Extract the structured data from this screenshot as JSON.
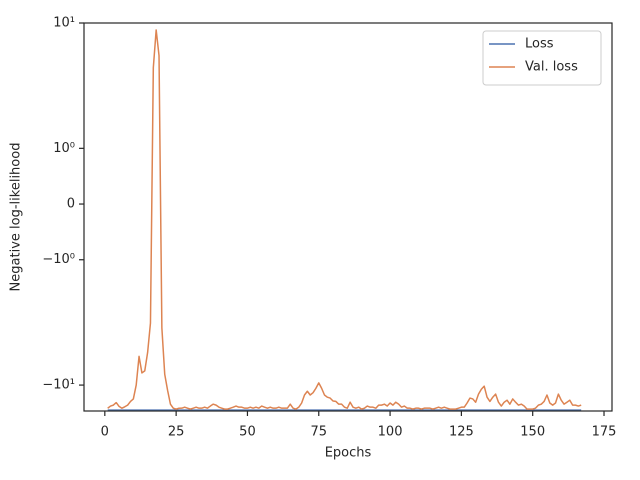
{
  "chart_data": {
    "type": "line",
    "xlabel": "Epochs",
    "ylabel": "Negative log-likelihood",
    "x": [
      1,
      2,
      3,
      4,
      5,
      6,
      7,
      8,
      9,
      10,
      11,
      12,
      13,
      14,
      15,
      16,
      17,
      18,
      19,
      20,
      21,
      22,
      23,
      24,
      25,
      26,
      27,
      28,
      29,
      30,
      31,
      32,
      33,
      34,
      35,
      36,
      37,
      38,
      39,
      40,
      41,
      42,
      43,
      44,
      45,
      46,
      47,
      48,
      49,
      50,
      51,
      52,
      53,
      54,
      55,
      56,
      57,
      58,
      59,
      60,
      61,
      62,
      63,
      64,
      65,
      66,
      67,
      68,
      69,
      70,
      71,
      72,
      73,
      74,
      75,
      76,
      77,
      78,
      79,
      80,
      81,
      82,
      83,
      84,
      85,
      86,
      87,
      88,
      89,
      90,
      91,
      92,
      93,
      94,
      95,
      96,
      97,
      98,
      99,
      100,
      101,
      102,
      103,
      104,
      105,
      106,
      107,
      108,
      109,
      110,
      111,
      112,
      113,
      114,
      115,
      116,
      117,
      118,
      119,
      120,
      121,
      122,
      123,
      124,
      125,
      126,
      127,
      128,
      129,
      130,
      131,
      132,
      133,
      134,
      135,
      136,
      137,
      138,
      139,
      140,
      141,
      142,
      143,
      144,
      145,
      146,
      147,
      148,
      149,
      150,
      151,
      152,
      153,
      154,
      155,
      156,
      157,
      158,
      159,
      160,
      161,
      162,
      163,
      164,
      165,
      166,
      167
    ],
    "series": [
      {
        "name": "Loss",
        "color": "#4c72b0",
        "values": [
          -15.85,
          -15.85,
          -15.85,
          -15.85,
          -15.85,
          -15.85,
          -15.85,
          -15.85,
          -15.85,
          -15.85,
          -15.85,
          -15.85,
          -15.85,
          -15.85,
          -15.85,
          -15.85,
          -15.85,
          -15.85,
          -15.85,
          -15.85,
          -15.85,
          -15.85,
          -15.85,
          -15.85,
          -15.85,
          -15.85,
          -15.85,
          -15.85,
          -15.85,
          -15.85,
          -15.85,
          -15.85,
          -15.85,
          -15.85,
          -15.85,
          -15.85,
          -15.85,
          -15.85,
          -15.85,
          -15.85,
          -15.85,
          -15.85,
          -15.85,
          -15.85,
          -15.85,
          -15.85,
          -15.85,
          -15.85,
          -15.85,
          -15.85,
          -15.85,
          -15.85,
          -15.85,
          -15.85,
          -15.85,
          -15.85,
          -15.85,
          -15.85,
          -15.85,
          -15.85,
          -15.85,
          -15.85,
          -15.85,
          -15.85,
          -15.85,
          -15.85,
          -15.85,
          -15.85,
          -15.85,
          -15.85,
          -15.85,
          -15.85,
          -15.85,
          -15.85,
          -15.85,
          -15.85,
          -15.85,
          -15.85,
          -15.85,
          -15.85,
          -15.85,
          -15.85,
          -15.85,
          -15.85,
          -15.85,
          -15.85,
          -15.85,
          -15.85,
          -15.85,
          -15.85,
          -15.85,
          -15.85,
          -15.85,
          -15.85,
          -15.85,
          -15.85,
          -15.85,
          -15.85,
          -15.85,
          -15.85,
          -15.85,
          -15.85,
          -15.85,
          -15.85,
          -15.85,
          -15.85,
          -15.85,
          -15.85,
          -15.85,
          -15.85,
          -15.85,
          -15.85,
          -15.85,
          -15.85,
          -15.85,
          -15.85,
          -15.85,
          -15.85,
          -15.85,
          -15.85,
          -15.85,
          -15.85,
          -15.85,
          -15.85,
          -15.85,
          -15.85,
          -15.85,
          -15.85,
          -15.85,
          -15.85,
          -15.85,
          -15.85,
          -15.85,
          -15.85,
          -15.85,
          -15.85,
          -15.85,
          -15.85,
          -15.85,
          -15.85,
          -15.85,
          -15.85,
          -15.85,
          -15.85,
          -15.85,
          -15.85,
          -15.85,
          -15.85,
          -15.85,
          -15.85,
          -15.85,
          -15.85,
          -15.85,
          -15.85,
          -15.85,
          -15.85,
          -15.85,
          -15.85,
          -15.85,
          -15.85,
          -15.85,
          -15.85,
          -15.85,
          -15.85,
          -15.85,
          -15.85,
          -15.85
        ]
      },
      {
        "name": "Val. loss",
        "color": "#dd8452",
        "values": [
          -15.3,
          -14.7,
          -14.45,
          -13.8,
          -14.8,
          -15.3,
          -14.9,
          -14.45,
          -13.5,
          -12.9,
          -10.0,
          -5.9,
          -8.0,
          -7.7,
          -5.5,
          -3.2,
          4.4,
          8.8,
          5.5,
          -3.5,
          -8.2,
          -11.0,
          -14.2,
          -15.3,
          -15.56,
          -15.3,
          -15.28,
          -15.0,
          -15.28,
          -15.56,
          -15.28,
          -15.0,
          -15.28,
          -15.28,
          -15.0,
          -15.28,
          -14.7,
          -14.2,
          -14.45,
          -15.0,
          -15.28,
          -15.56,
          -15.56,
          -15.28,
          -15.0,
          -14.7,
          -15.0,
          -15.0,
          -15.28,
          -15.28,
          -15.0,
          -15.28,
          -15.0,
          -15.28,
          -14.7,
          -15.0,
          -15.3,
          -15.0,
          -15.28,
          -15.28,
          -15.0,
          -15.28,
          -15.28,
          -15.28,
          -14.2,
          -15.28,
          -15.56,
          -15.0,
          -13.9,
          -12.0,
          -11.2,
          -12.0,
          -11.5,
          -10.6,
          -9.6,
          -10.6,
          -12.0,
          -12.5,
          -12.7,
          -13.4,
          -13.5,
          -14.2,
          -14.2,
          -15.0,
          -15.3,
          -13.7,
          -15.0,
          -15.3,
          -15.0,
          -15.56,
          -15.3,
          -14.7,
          -15.0,
          -15.0,
          -15.3,
          -14.45,
          -14.45,
          -14.2,
          -14.7,
          -13.9,
          -14.45,
          -13.7,
          -14.2,
          -15.0,
          -14.7,
          -15.28,
          -15.28,
          -15.56,
          -15.28,
          -15.28,
          -15.56,
          -15.28,
          -15.28,
          -15.28,
          -15.56,
          -15.28,
          -15.0,
          -15.28,
          -15.0,
          -15.28,
          -15.56,
          -15.56,
          -15.56,
          -15.28,
          -15.0,
          -15.0,
          -13.9,
          -12.7,
          -12.9,
          -13.7,
          -11.8,
          -10.8,
          -10.2,
          -12.5,
          -13.5,
          -12.5,
          -11.8,
          -13.7,
          -14.7,
          -13.7,
          -13.2,
          -14.2,
          -12.9,
          -13.7,
          -14.45,
          -14.2,
          -14.7,
          -15.56,
          -15.56,
          -15.56,
          -15.28,
          -14.45,
          -14.2,
          -13.5,
          -12.0,
          -13.9,
          -14.45,
          -13.9,
          -11.8,
          -13.2,
          -14.2,
          -13.7,
          -13.2,
          -14.45,
          -14.45,
          -14.7,
          -14.45
        ]
      }
    ],
    "xlim": [
      -7.3,
      177.8
    ],
    "xticks": [
      0,
      25,
      50,
      75,
      100,
      125,
      150,
      175
    ],
    "yscale": "symlog",
    "linthresh": 1,
    "linscale": 0.4,
    "ylim": [
      -16.1,
      10
    ],
    "yticks": [
      {
        "value": -10,
        "label": "−10¹"
      },
      {
        "value": -1,
        "label": "−10⁰"
      },
      0,
      {
        "value": 1,
        "label": "10⁰"
      },
      {
        "value": 10,
        "label": "10¹"
      }
    ],
    "legend": "upper right"
  }
}
